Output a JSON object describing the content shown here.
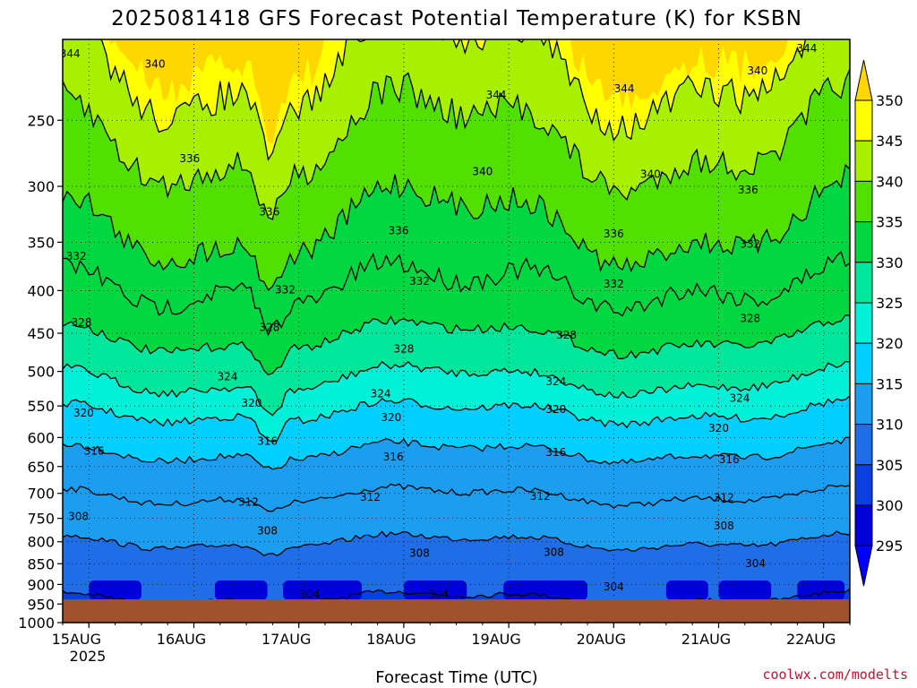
{
  "header": {
    "title": "2025081418 GFS Forecast Potential Temperature (K) for KSBN"
  },
  "footer": {
    "credit": "coolwx.com/modelts"
  },
  "colors": {
    "ground": "#a0522d",
    "contour": "#000000",
    "credit": "#c8102e"
  },
  "chart_data": {
    "type": "heatmap",
    "title": "2025081418 GFS Forecast Potential Temperature (K) for KSBN",
    "xlabel": "Forecast Time (UTC)",
    "ylabel": "",
    "x_ticks": [
      "15AUG",
      "16AUG",
      "17AUG",
      "18AUG",
      "19AUG",
      "20AUG",
      "21AUG",
      "22AUG"
    ],
    "x_year": "2025",
    "y_ticks": [
      250,
      300,
      350,
      400,
      450,
      500,
      550,
      600,
      650,
      700,
      750,
      800,
      850,
      900,
      950,
      1000
    ],
    "y_scale": "log",
    "y_range": [
      200,
      1000
    ],
    "x_range": [
      "2025-08-14 18Z",
      "2025-08-22 06Z"
    ],
    "grid": true,
    "colorbar": {
      "levels": [
        295,
        300,
        305,
        310,
        315,
        320,
        325,
        330,
        335,
        340,
        345,
        350
      ],
      "colors": [
        "#0000ff",
        "#0000d8",
        "#0a3fe0",
        "#1f6ee8",
        "#1b9ef0",
        "#00cfff",
        "#00f0d8",
        "#00e69a",
        "#00d740",
        "#52e000",
        "#a8ef00",
        "#ffff00",
        "#ffd700"
      ]
    },
    "contour_interval": 4,
    "contour_values": [
      300,
      304,
      308,
      312,
      316,
      320,
      324,
      328,
      332,
      336,
      340,
      344
    ],
    "contour_labels": [
      {
        "value": 344,
        "day": 14.82,
        "p": 208
      },
      {
        "value": 344,
        "day": 21.84,
        "p": 205
      },
      {
        "value": 344,
        "day": 18.88,
        "p": 233
      },
      {
        "value": 344,
        "day": 20.1,
        "p": 229
      },
      {
        "value": 340,
        "day": 15.63,
        "p": 214
      },
      {
        "value": 340,
        "day": 21.37,
        "p": 218
      },
      {
        "value": 340,
        "day": 18.75,
        "p": 288
      },
      {
        "value": 340,
        "day": 20.35,
        "p": 290
      },
      {
        "value": 336,
        "day": 15.96,
        "p": 278
      },
      {
        "value": 336,
        "day": 16.72,
        "p": 322
      },
      {
        "value": 336,
        "day": 17.95,
        "p": 339
      },
      {
        "value": 336,
        "day": 20.0,
        "p": 342
      },
      {
        "value": 336,
        "day": 21.28,
        "p": 303
      },
      {
        "value": 332,
        "day": 14.88,
        "p": 364
      },
      {
        "value": 332,
        "day": 16.87,
        "p": 399
      },
      {
        "value": 332,
        "day": 18.15,
        "p": 390
      },
      {
        "value": 332,
        "day": 20.0,
        "p": 393
      },
      {
        "value": 332,
        "day": 21.3,
        "p": 352
      },
      {
        "value": 328,
        "day": 14.93,
        "p": 437
      },
      {
        "value": 328,
        "day": 16.72,
        "p": 443
      },
      {
        "value": 328,
        "day": 18.0,
        "p": 470
      },
      {
        "value": 328,
        "day": 19.55,
        "p": 452
      },
      {
        "value": 328,
        "day": 21.3,
        "p": 432
      },
      {
        "value": 324,
        "day": 16.32,
        "p": 507
      },
      {
        "value": 324,
        "day": 17.78,
        "p": 532
      },
      {
        "value": 324,
        "day": 19.45,
        "p": 514
      },
      {
        "value": 324,
        "day": 21.2,
        "p": 538
      },
      {
        "value": 320,
        "day": 14.95,
        "p": 561
      },
      {
        "value": 320,
        "day": 16.55,
        "p": 546
      },
      {
        "value": 320,
        "day": 17.88,
        "p": 568
      },
      {
        "value": 320,
        "day": 19.45,
        "p": 555
      },
      {
        "value": 320,
        "day": 21.0,
        "p": 585
      },
      {
        "value": 316,
        "day": 15.05,
        "p": 623
      },
      {
        "value": 316,
        "day": 16.7,
        "p": 606
      },
      {
        "value": 316,
        "day": 17.9,
        "p": 633
      },
      {
        "value": 316,
        "day": 19.45,
        "p": 625
      },
      {
        "value": 316,
        "day": 21.1,
        "p": 638
      },
      {
        "value": 312,
        "day": 16.52,
        "p": 717
      },
      {
        "value": 312,
        "day": 17.68,
        "p": 707
      },
      {
        "value": 312,
        "day": 19.3,
        "p": 706
      },
      {
        "value": 312,
        "day": 21.05,
        "p": 708
      },
      {
        "value": 308,
        "day": 14.9,
        "p": 746
      },
      {
        "value": 308,
        "day": 16.7,
        "p": 776
      },
      {
        "value": 308,
        "day": 18.15,
        "p": 826
      },
      {
        "value": 308,
        "day": 19.43,
        "p": 824
      },
      {
        "value": 308,
        "day": 21.05,
        "p": 766
      },
      {
        "value": 304,
        "day": 17.1,
        "p": 925
      },
      {
        "value": 304,
        "day": 18.33,
        "p": 925
      },
      {
        "value": 304,
        "day": 20.0,
        "p": 906
      },
      {
        "value": 304,
        "day": 21.35,
        "p": 849
      }
    ]
  }
}
